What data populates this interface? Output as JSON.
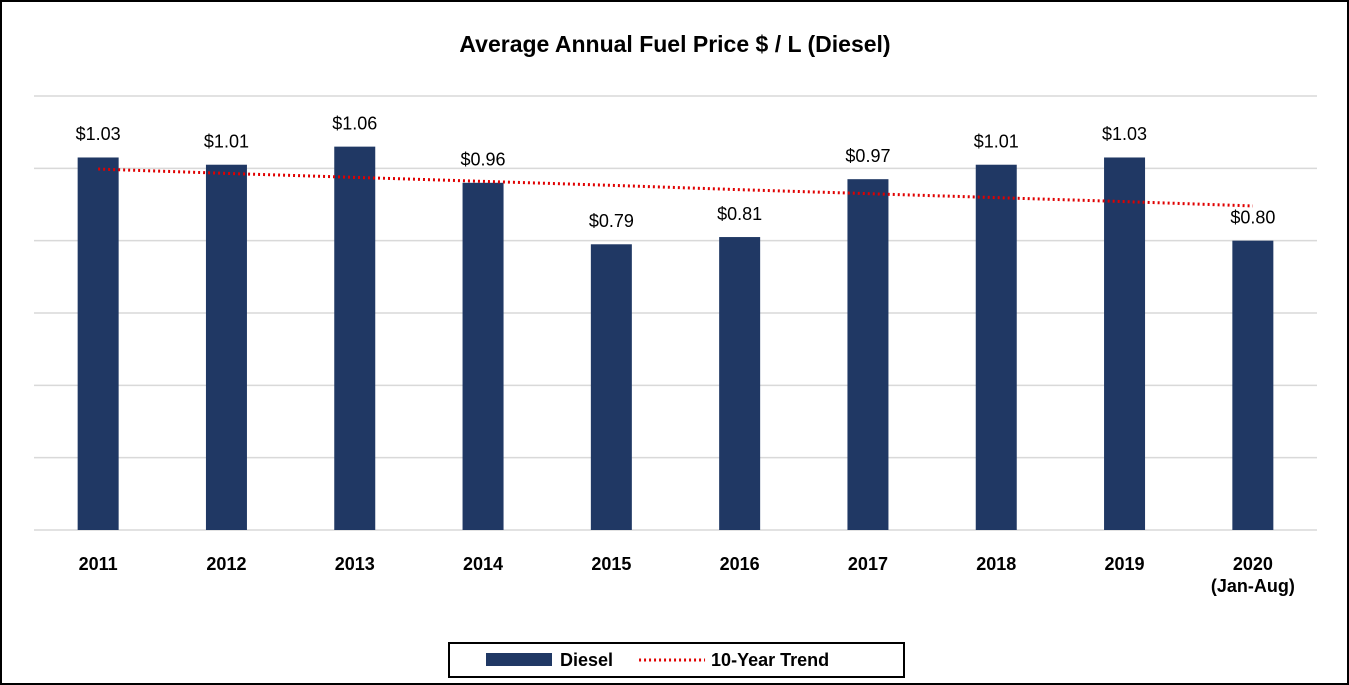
{
  "chart_data": {
    "type": "bar",
    "title": "Average Annual Fuel Price $ / L (Diesel)",
    "categories": [
      "2011",
      "2012",
      "2013",
      "2014",
      "2015",
      "2016",
      "2017",
      "2018",
      "2019",
      "2020\n(Jan-Aug)"
    ],
    "series": [
      {
        "name": "Diesel",
        "color": "#203864",
        "type": "bar",
        "values": [
          1.03,
          1.01,
          1.06,
          0.96,
          0.79,
          0.81,
          0.97,
          1.01,
          1.03,
          0.8
        ],
        "value_labels": [
          "$1.03",
          "$1.01",
          "$1.06",
          "$0.96",
          "$0.79",
          "$0.81",
          "$0.97",
          "$1.01",
          "$1.03",
          "$0.80"
        ]
      },
      {
        "name": "10-Year Trend",
        "color": "#e00000",
        "type": "line",
        "dotted": true,
        "values": [
          0.998,
          0.986,
          0.975,
          0.964,
          0.953,
          0.941,
          0.93,
          0.919,
          0.908,
          0.896
        ]
      }
    ],
    "ylim": [
      0,
      1.2
    ],
    "yticks": [
      0,
      0.2,
      0.4,
      0.6,
      0.8,
      1.0,
      1.2
    ],
    "grid": true,
    "legend": "bottom"
  }
}
